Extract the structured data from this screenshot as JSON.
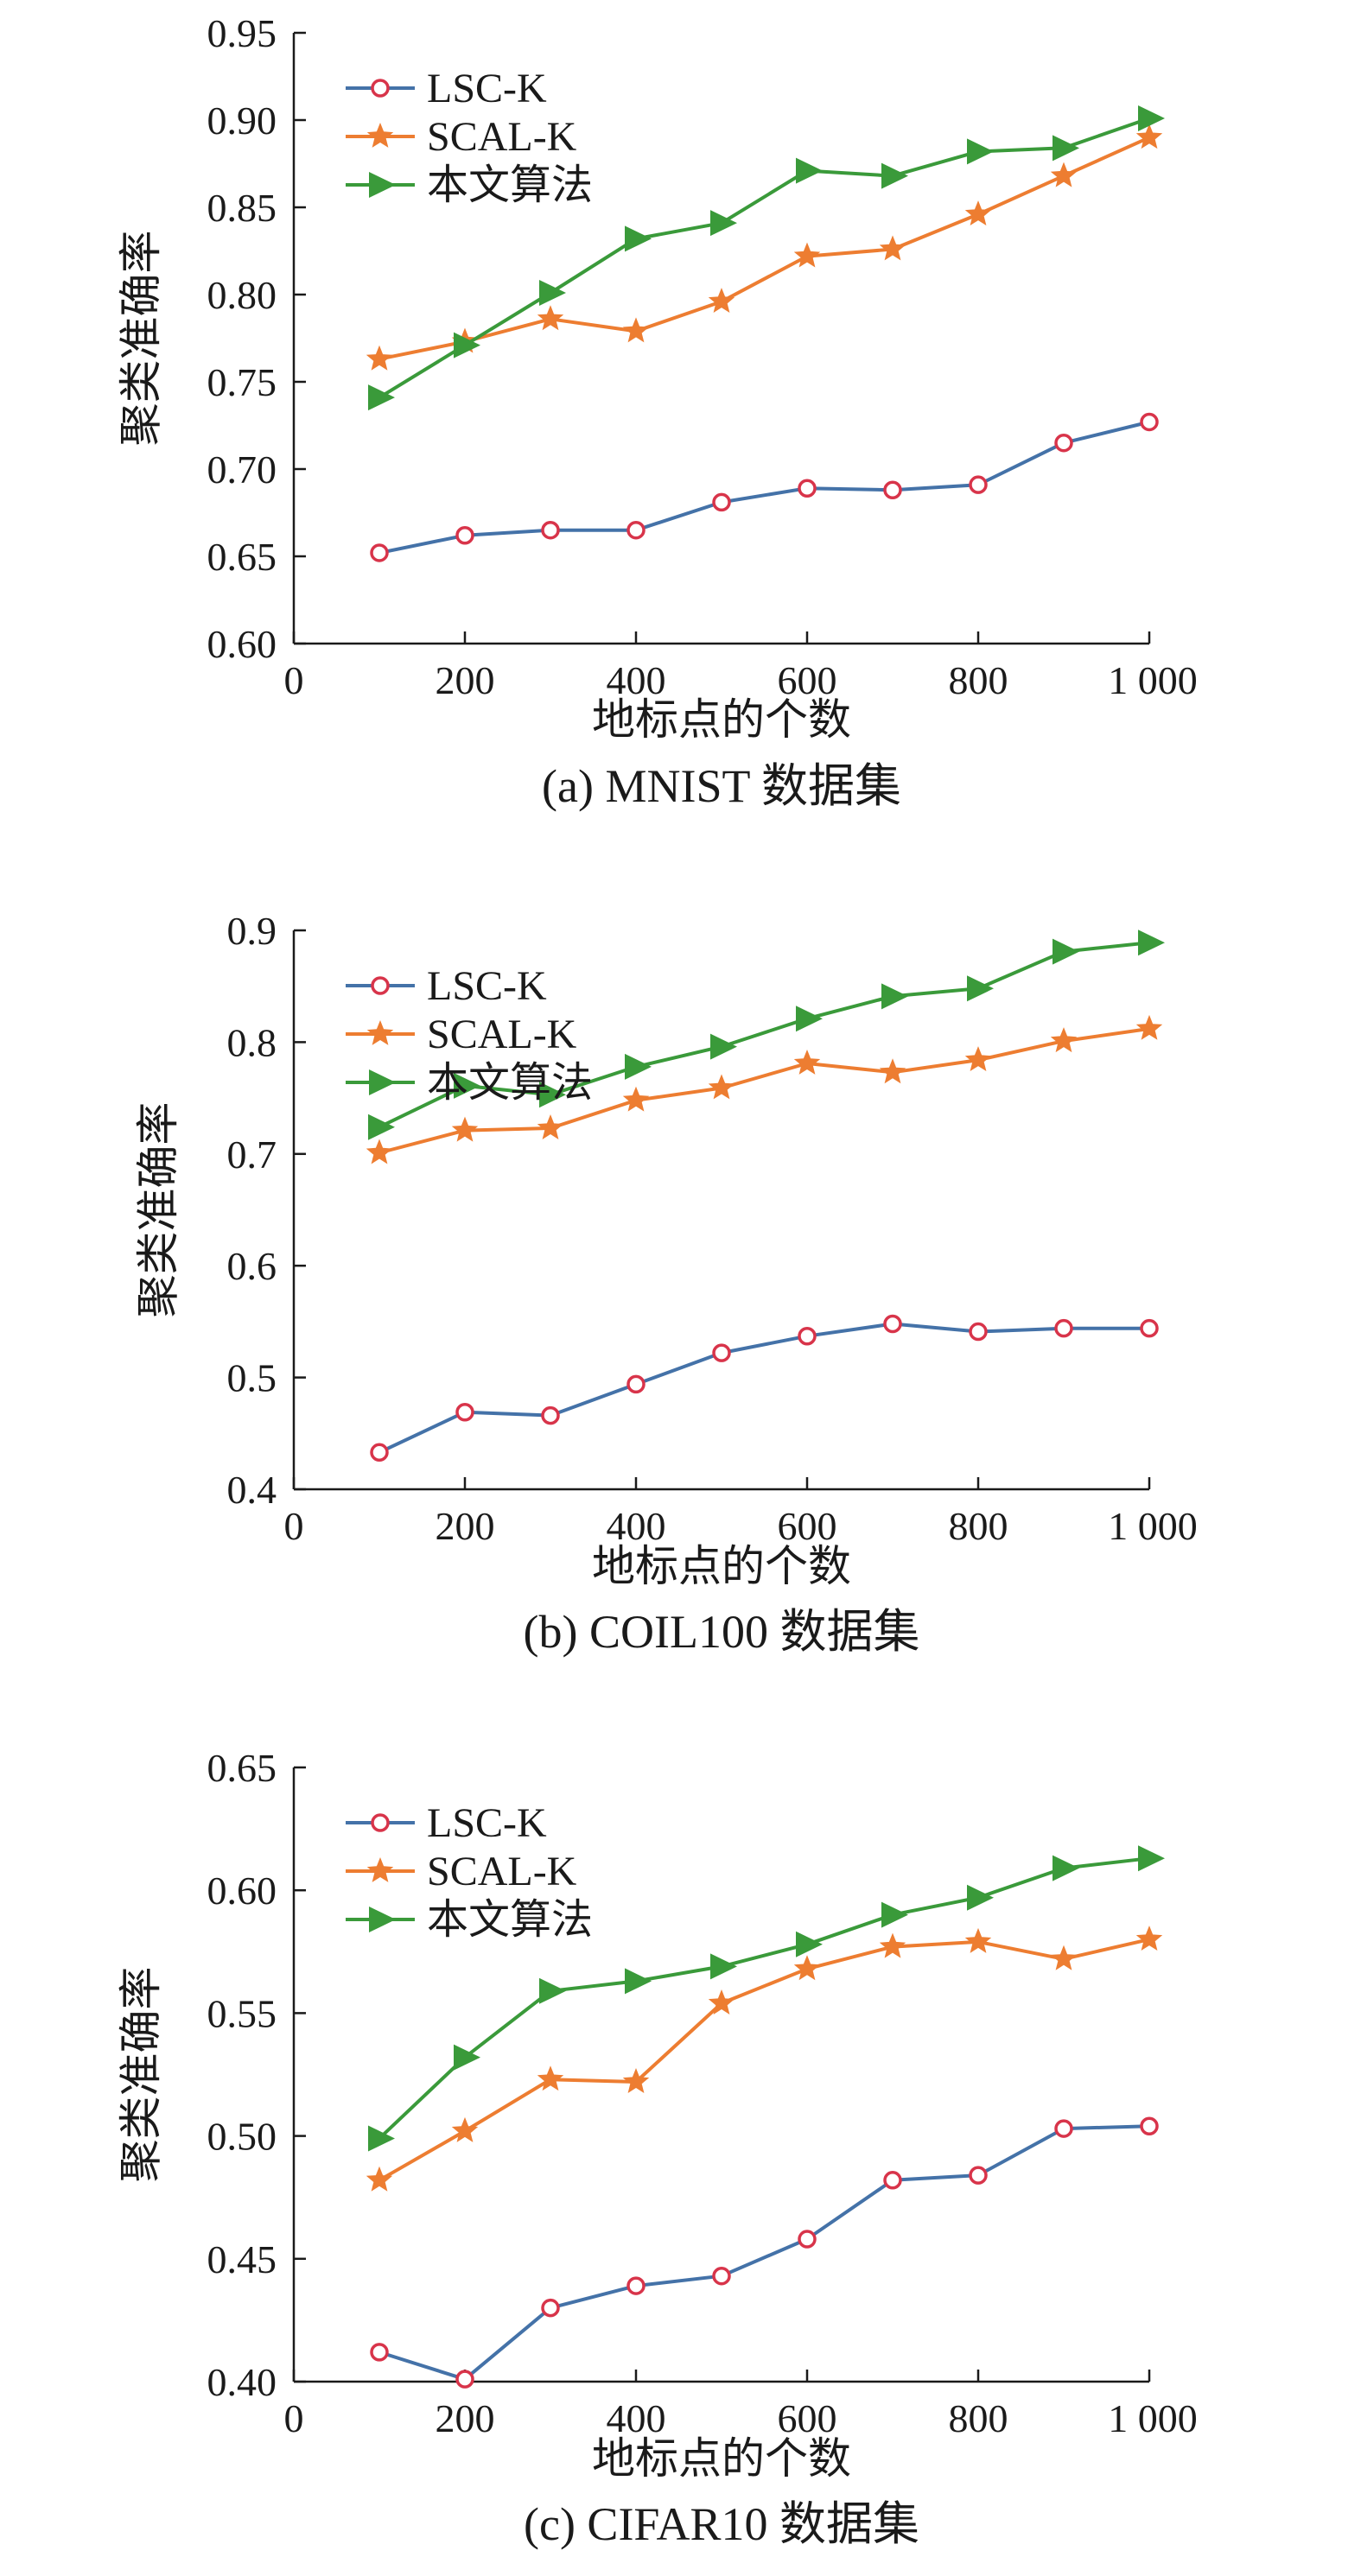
{
  "colors": {
    "lsc": "#4472a8",
    "lsc_marker": "#d8344a",
    "scal": "#ed7d31",
    "ours": "#3a9a3a",
    "axis": "#1a1a1a"
  },
  "series_styles": [
    {
      "key": "lsc",
      "name": "LSC-K",
      "marker": "circle"
    },
    {
      "key": "scal",
      "name": "SCAL-K",
      "marker": "star"
    },
    {
      "key": "ours",
      "name": "本文算法",
      "marker": "triangle-right"
    }
  ],
  "chart_data": [
    {
      "type": "line",
      "caption": "(a) MNIST 数据集",
      "xlabel": "地标点的个数",
      "ylabel": "聚类准确率",
      "x": [
        100,
        200,
        300,
        400,
        500,
        600,
        700,
        800,
        900,
        1000
      ],
      "xlim": [
        0,
        1000
      ],
      "ylim": [
        0.6,
        0.95
      ],
      "xticks": [
        0,
        200,
        400,
        600,
        800,
        1000
      ],
      "xtick_labels": [
        "0",
        "200",
        "400",
        "600",
        "800",
        "1 000"
      ],
      "yticks": [
        0.6,
        0.65,
        0.7,
        0.75,
        0.8,
        0.85,
        0.9,
        0.95
      ],
      "ytick_labels": [
        "0.60",
        "0.65",
        "0.70",
        "0.75",
        "0.80",
        "0.85",
        "0.90",
        "0.95"
      ],
      "legend_position": "top-left",
      "series": [
        {
          "name": "LSC-K",
          "values": [
            0.652,
            0.662,
            0.665,
            0.665,
            0.681,
            0.689,
            0.688,
            0.691,
            0.715,
            0.727
          ]
        },
        {
          "name": "SCAL-K",
          "values": [
            0.763,
            0.773,
            0.786,
            0.779,
            0.796,
            0.822,
            0.826,
            0.846,
            0.868,
            0.89
          ]
        },
        {
          "name": "本文算法",
          "values": [
            0.741,
            0.771,
            0.801,
            0.832,
            0.841,
            0.871,
            0.868,
            0.882,
            0.884,
            0.901
          ]
        }
      ]
    },
    {
      "type": "line",
      "caption": "(b) COIL100 数据集",
      "xlabel": "地标点的个数",
      "ylabel": "聚类准确率",
      "x": [
        100,
        200,
        300,
        400,
        500,
        600,
        700,
        800,
        900,
        1000
      ],
      "xlim": [
        0,
        1000
      ],
      "ylim": [
        0.4,
        0.9
      ],
      "xticks": [
        0,
        200,
        400,
        600,
        800,
        1000
      ],
      "xtick_labels": [
        "0",
        "200",
        "400",
        "600",
        "800",
        "1 000"
      ],
      "yticks": [
        0.4,
        0.5,
        0.6,
        0.7,
        0.8,
        0.9
      ],
      "ytick_labels": [
        "0.4",
        "0.5",
        "0.6",
        "0.7",
        "0.8",
        "0.9"
      ],
      "legend_position": "top-left",
      "series": [
        {
          "name": "LSC-K",
          "values": [
            0.433,
            0.469,
            0.466,
            0.494,
            0.522,
            0.537,
            0.548,
            0.541,
            0.544,
            0.544
          ]
        },
        {
          "name": "SCAL-K",
          "values": [
            0.701,
            0.721,
            0.723,
            0.748,
            0.759,
            0.781,
            0.773,
            0.784,
            0.801,
            0.812
          ]
        },
        {
          "name": "本文算法",
          "values": [
            0.724,
            0.761,
            0.753,
            0.778,
            0.796,
            0.821,
            0.841,
            0.848,
            0.881,
            0.889
          ]
        }
      ]
    },
    {
      "type": "line",
      "caption": "(c) CIFAR10 数据集",
      "xlabel": "地标点的个数",
      "ylabel": "聚类准确率",
      "x": [
        100,
        200,
        300,
        400,
        500,
        600,
        700,
        800,
        900,
        1000
      ],
      "xlim": [
        0,
        1000
      ],
      "ylim": [
        0.4,
        0.65
      ],
      "xticks": [
        0,
        200,
        400,
        600,
        800,
        1000
      ],
      "xtick_labels": [
        "0",
        "200",
        "400",
        "600",
        "800",
        "1 000"
      ],
      "yticks": [
        0.4,
        0.45,
        0.5,
        0.55,
        0.6,
        0.65
      ],
      "ytick_labels": [
        "0.40",
        "0.45",
        "0.50",
        "0.55",
        "0.60",
        "0.65"
      ],
      "legend_position": "top-left",
      "series": [
        {
          "name": "LSC-K",
          "values": [
            0.412,
            0.401,
            0.43,
            0.439,
            0.443,
            0.458,
            0.482,
            0.484,
            0.503,
            0.504
          ]
        },
        {
          "name": "SCAL-K",
          "values": [
            0.482,
            0.502,
            0.523,
            0.522,
            0.554,
            0.568,
            0.577,
            0.579,
            0.572,
            0.58
          ]
        },
        {
          "name": "本文算法",
          "values": [
            0.499,
            0.532,
            0.559,
            0.563,
            0.569,
            0.578,
            0.59,
            0.597,
            0.609,
            0.613
          ]
        }
      ]
    }
  ]
}
